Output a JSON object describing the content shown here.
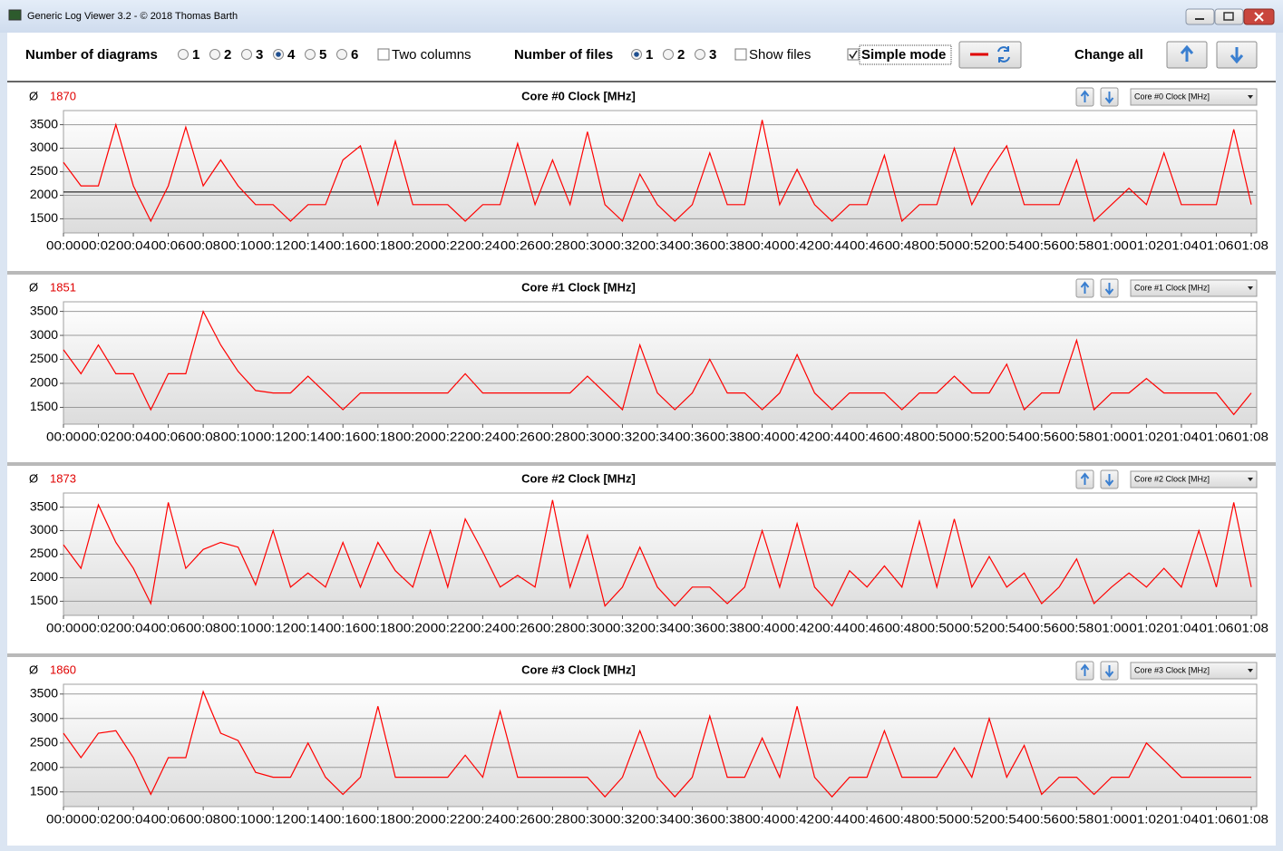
{
  "window": {
    "title": "Generic Log Viewer 3.2 - © 2018 Thomas Barth"
  },
  "toolbar": {
    "diagrams_label": "Number of diagrams",
    "diagram_options": [
      "1",
      "2",
      "3",
      "4",
      "5",
      "6"
    ],
    "diagram_selected": 3,
    "two_columns": "Two columns",
    "files_label": "Number of files",
    "file_options": [
      "1",
      "2",
      "3"
    ],
    "file_selected": 0,
    "show_files": "Show files",
    "simple_mode": "Simple mode",
    "change_all": "Change all"
  },
  "chart_data": [
    {
      "type": "line",
      "avg_symbol": "Ø",
      "average": 1870,
      "title": "Core #0 Clock [MHz]",
      "color": "#ff0000",
      "reference_line": 2070,
      "reference_color": "#000000",
      "xlim": [
        0,
        68
      ],
      "ylim": [
        1200,
        3800
      ],
      "yticks": [
        1500,
        2000,
        2500,
        3000,
        3500
      ],
      "xticks": [
        {
          "value": 0,
          "label": "00:00"
        },
        {
          "value": 2,
          "label": "00:02"
        },
        {
          "value": 4,
          "label": "00:04"
        },
        {
          "value": 6,
          "label": "00:06"
        },
        {
          "value": 8,
          "label": "00:08"
        },
        {
          "value": 10,
          "label": "00:10"
        },
        {
          "value": 12,
          "label": "00:12"
        },
        {
          "value": 14,
          "label": "00:14"
        },
        {
          "value": 16,
          "label": "00:16"
        },
        {
          "value": 18,
          "label": "00:18"
        },
        {
          "value": 20,
          "label": "00:20"
        },
        {
          "value": 22,
          "label": "00:22"
        },
        {
          "value": 24,
          "label": "00:24"
        },
        {
          "value": 26,
          "label": "00:26"
        },
        {
          "value": 28,
          "label": "00:28"
        },
        {
          "value": 30,
          "label": "00:30"
        },
        {
          "value": 32,
          "label": "00:32"
        },
        {
          "value": 34,
          "label": "00:34"
        },
        {
          "value": 36,
          "label": "00:36"
        },
        {
          "value": 38,
          "label": "00:38"
        },
        {
          "value": 40,
          "label": "00:40"
        },
        {
          "value": 42,
          "label": "00:42"
        },
        {
          "value": 44,
          "label": "00:44"
        },
        {
          "value": 46,
          "label": "00:46"
        },
        {
          "value": 48,
          "label": "00:48"
        },
        {
          "value": 50,
          "label": "00:50"
        },
        {
          "value": 52,
          "label": "00:52"
        },
        {
          "value": 54,
          "label": "00:54"
        },
        {
          "value": 56,
          "label": "00:56"
        },
        {
          "value": 58,
          "label": "00:58"
        },
        {
          "value": 60,
          "label": "01:00"
        },
        {
          "value": 62,
          "label": "01:02"
        },
        {
          "value": 64,
          "label": "01:04"
        },
        {
          "value": 66,
          "label": "01:06"
        },
        {
          "value": 68,
          "label": "01:08"
        }
      ],
      "x": [
        0,
        1,
        2,
        3,
        4,
        5,
        6,
        7,
        8,
        9,
        10,
        11,
        12,
        13,
        14,
        15,
        16,
        17,
        18,
        19,
        20,
        21,
        22,
        23,
        24,
        25,
        26,
        27,
        28,
        29,
        30,
        31,
        32,
        33,
        34,
        35,
        36,
        37,
        38,
        39,
        40,
        41,
        42,
        43,
        44,
        45,
        46,
        47,
        48,
        49,
        50,
        51,
        52,
        53,
        54,
        55,
        56,
        57,
        58,
        59,
        60,
        61,
        62,
        63,
        64,
        65,
        66,
        67,
        68
      ],
      "values": [
        2700,
        2200,
        2200,
        3500,
        2200,
        1450,
        2200,
        3450,
        2200,
        2750,
        2200,
        1800,
        1800,
        1450,
        1800,
        1800,
        2750,
        3050,
        1800,
        3150,
        1800,
        1800,
        1800,
        1450,
        1800,
        1800,
        3100,
        1800,
        2750,
        1800,
        3350,
        1800,
        1450,
        2450,
        1800,
        1450,
        1800,
        2900,
        1800,
        1800,
        3600,
        1800,
        2550,
        1800,
        1450,
        1800,
        1800,
        2850,
        1450,
        1800,
        1800,
        3000,
        1800,
        2500,
        3050,
        1800,
        1800,
        1800,
        2750,
        1450,
        1800,
        2150,
        1800,
        2900,
        1800,
        1800,
        1800,
        3400,
        1800
      ]
    },
    {
      "type": "line",
      "avg_symbol": "Ø",
      "average": 1851,
      "title": "Core #1 Clock [MHz]",
      "color": "#ff0000",
      "xlim": [
        0,
        68
      ],
      "ylim": [
        1150,
        3700
      ],
      "yticks": [
        1500,
        2000,
        2500,
        3000,
        3500
      ],
      "xticks": [
        {
          "value": 0,
          "label": "00:00"
        },
        {
          "value": 2,
          "label": "00:02"
        },
        {
          "value": 4,
          "label": "00:04"
        },
        {
          "value": 6,
          "label": "00:06"
        },
        {
          "value": 8,
          "label": "00:08"
        },
        {
          "value": 10,
          "label": "00:10"
        },
        {
          "value": 12,
          "label": "00:12"
        },
        {
          "value": 14,
          "label": "00:14"
        },
        {
          "value": 16,
          "label": "00:16"
        },
        {
          "value": 18,
          "label": "00:18"
        },
        {
          "value": 20,
          "label": "00:20"
        },
        {
          "value": 22,
          "label": "00:22"
        },
        {
          "value": 24,
          "label": "00:24"
        },
        {
          "value": 26,
          "label": "00:26"
        },
        {
          "value": 28,
          "label": "00:28"
        },
        {
          "value": 30,
          "label": "00:30"
        },
        {
          "value": 32,
          "label": "00:32"
        },
        {
          "value": 34,
          "label": "00:34"
        },
        {
          "value": 36,
          "label": "00:36"
        },
        {
          "value": 38,
          "label": "00:38"
        },
        {
          "value": 40,
          "label": "00:40"
        },
        {
          "value": 42,
          "label": "00:42"
        },
        {
          "value": 44,
          "label": "00:44"
        },
        {
          "value": 46,
          "label": "00:46"
        },
        {
          "value": 48,
          "label": "00:48"
        },
        {
          "value": 50,
          "label": "00:50"
        },
        {
          "value": 52,
          "label": "00:52"
        },
        {
          "value": 54,
          "label": "00:54"
        },
        {
          "value": 56,
          "label": "00:56"
        },
        {
          "value": 58,
          "label": "00:58"
        },
        {
          "value": 60,
          "label": "01:00"
        },
        {
          "value": 62,
          "label": "01:02"
        },
        {
          "value": 64,
          "label": "01:04"
        },
        {
          "value": 66,
          "label": "01:06"
        },
        {
          "value": 68,
          "label": "01:08"
        }
      ],
      "x": [
        0,
        1,
        2,
        3,
        4,
        5,
        6,
        7,
        8,
        9,
        10,
        11,
        12,
        13,
        14,
        15,
        16,
        17,
        18,
        19,
        20,
        21,
        22,
        23,
        24,
        25,
        26,
        27,
        28,
        29,
        30,
        31,
        32,
        33,
        34,
        35,
        36,
        37,
        38,
        39,
        40,
        41,
        42,
        43,
        44,
        45,
        46,
        47,
        48,
        49,
        50,
        51,
        52,
        53,
        54,
        55,
        56,
        57,
        58,
        59,
        60,
        61,
        62,
        63,
        64,
        65,
        66,
        67,
        68
      ],
      "values": [
        2700,
        2200,
        2800,
        2200,
        2200,
        1450,
        2200,
        2200,
        3500,
        2800,
        2250,
        1850,
        1800,
        1800,
        2150,
        1800,
        1450,
        1800,
        1800,
        1800,
        1800,
        1800,
        1800,
        2200,
        1800,
        1800,
        1800,
        1800,
        1800,
        1800,
        2150,
        1800,
        1450,
        2800,
        1800,
        1450,
        1800,
        2500,
        1800,
        1800,
        1450,
        1800,
        2600,
        1800,
        1450,
        1800,
        1800,
        1800,
        1450,
        1800,
        1800,
        2150,
        1800,
        1800,
        2400,
        1450,
        1800,
        1800,
        2900,
        1450,
        1800,
        1800,
        2100,
        1800,
        1800,
        1800,
        1800,
        1350,
        1800
      ]
    },
    {
      "type": "line",
      "avg_symbol": "Ø",
      "average": 1873,
      "title": "Core #2 Clock [MHz]",
      "color": "#ff0000",
      "xlim": [
        0,
        68
      ],
      "ylim": [
        1200,
        3800
      ],
      "yticks": [
        1500,
        2000,
        2500,
        3000,
        3500
      ],
      "xticks": [
        {
          "value": 0,
          "label": "00:00"
        },
        {
          "value": 2,
          "label": "00:02"
        },
        {
          "value": 4,
          "label": "00:04"
        },
        {
          "value": 6,
          "label": "00:06"
        },
        {
          "value": 8,
          "label": "00:08"
        },
        {
          "value": 10,
          "label": "00:10"
        },
        {
          "value": 12,
          "label": "00:12"
        },
        {
          "value": 14,
          "label": "00:14"
        },
        {
          "value": 16,
          "label": "00:16"
        },
        {
          "value": 18,
          "label": "00:18"
        },
        {
          "value": 20,
          "label": "00:20"
        },
        {
          "value": 22,
          "label": "00:22"
        },
        {
          "value": 24,
          "label": "00:24"
        },
        {
          "value": 26,
          "label": "00:26"
        },
        {
          "value": 28,
          "label": "00:28"
        },
        {
          "value": 30,
          "label": "00:30"
        },
        {
          "value": 32,
          "label": "00:32"
        },
        {
          "value": 34,
          "label": "00:34"
        },
        {
          "value": 36,
          "label": "00:36"
        },
        {
          "value": 38,
          "label": "00:38"
        },
        {
          "value": 40,
          "label": "00:40"
        },
        {
          "value": 42,
          "label": "00:42"
        },
        {
          "value": 44,
          "label": "00:44"
        },
        {
          "value": 46,
          "label": "00:46"
        },
        {
          "value": 48,
          "label": "00:48"
        },
        {
          "value": 50,
          "label": "00:50"
        },
        {
          "value": 52,
          "label": "00:52"
        },
        {
          "value": 54,
          "label": "00:54"
        },
        {
          "value": 56,
          "label": "00:56"
        },
        {
          "value": 58,
          "label": "00:58"
        },
        {
          "value": 60,
          "label": "01:00"
        },
        {
          "value": 62,
          "label": "01:02"
        },
        {
          "value": 64,
          "label": "01:04"
        },
        {
          "value": 66,
          "label": "01:06"
        },
        {
          "value": 68,
          "label": "01:08"
        }
      ],
      "x": [
        0,
        1,
        2,
        3,
        4,
        5,
        6,
        7,
        8,
        9,
        10,
        11,
        12,
        13,
        14,
        15,
        16,
        17,
        18,
        19,
        20,
        21,
        22,
        23,
        24,
        25,
        26,
        27,
        28,
        29,
        30,
        31,
        32,
        33,
        34,
        35,
        36,
        37,
        38,
        39,
        40,
        41,
        42,
        43,
        44,
        45,
        46,
        47,
        48,
        49,
        50,
        51,
        52,
        53,
        54,
        55,
        56,
        57,
        58,
        59,
        60,
        61,
        62,
        63,
        64,
        65,
        66,
        67,
        68
      ],
      "values": [
        2700,
        2200,
        3550,
        2750,
        2200,
        1450,
        3600,
        2200,
        2600,
        2750,
        2650,
        1850,
        3000,
        1800,
        2100,
        1800,
        2750,
        1800,
        2750,
        2150,
        1800,
        3000,
        1800,
        3250,
        2550,
        1800,
        2050,
        1800,
        3650,
        1800,
        2900,
        1400,
        1800,
        2650,
        1800,
        1400,
        1800,
        1800,
        1450,
        1800,
        3000,
        1800,
        3150,
        1800,
        1400,
        2150,
        1800,
        2250,
        1800,
        3200,
        1800,
        3250,
        1800,
        2450,
        1800,
        2100,
        1450,
        1800,
        2400,
        1450,
        1800,
        2100,
        1800,
        2200,
        1800,
        3000,
        1800,
        3600,
        1800
      ]
    },
    {
      "type": "line",
      "avg_symbol": "Ø",
      "average": 1860,
      "title": "Core #3 Clock [MHz]",
      "color": "#ff0000",
      "xlim": [
        0,
        68
      ],
      "ylim": [
        1200,
        3700
      ],
      "yticks": [
        1500,
        2000,
        2500,
        3000,
        3500
      ],
      "xticks": [
        {
          "value": 0,
          "label": "00:00"
        },
        {
          "value": 2,
          "label": "00:02"
        },
        {
          "value": 4,
          "label": "00:04"
        },
        {
          "value": 6,
          "label": "00:06"
        },
        {
          "value": 8,
          "label": "00:08"
        },
        {
          "value": 10,
          "label": "00:10"
        },
        {
          "value": 12,
          "label": "00:12"
        },
        {
          "value": 14,
          "label": "00:14"
        },
        {
          "value": 16,
          "label": "00:16"
        },
        {
          "value": 18,
          "label": "00:18"
        },
        {
          "value": 20,
          "label": "00:20"
        },
        {
          "value": 22,
          "label": "00:22"
        },
        {
          "value": 24,
          "label": "00:24"
        },
        {
          "value": 26,
          "label": "00:26"
        },
        {
          "value": 28,
          "label": "00:28"
        },
        {
          "value": 30,
          "label": "00:30"
        },
        {
          "value": 32,
          "label": "00:32"
        },
        {
          "value": 34,
          "label": "00:34"
        },
        {
          "value": 36,
          "label": "00:36"
        },
        {
          "value": 38,
          "label": "00:38"
        },
        {
          "value": 40,
          "label": "00:40"
        },
        {
          "value": 42,
          "label": "00:42"
        },
        {
          "value": 44,
          "label": "00:44"
        },
        {
          "value": 46,
          "label": "00:46"
        },
        {
          "value": 48,
          "label": "00:48"
        },
        {
          "value": 50,
          "label": "00:50"
        },
        {
          "value": 52,
          "label": "00:52"
        },
        {
          "value": 54,
          "label": "00:54"
        },
        {
          "value": 56,
          "label": "00:56"
        },
        {
          "value": 58,
          "label": "00:58"
        },
        {
          "value": 60,
          "label": "01:00"
        },
        {
          "value": 62,
          "label": "01:02"
        },
        {
          "value": 64,
          "label": "01:04"
        },
        {
          "value": 66,
          "label": "01:06"
        },
        {
          "value": 68,
          "label": "01:08"
        }
      ],
      "x": [
        0,
        1,
        2,
        3,
        4,
        5,
        6,
        7,
        8,
        9,
        10,
        11,
        12,
        13,
        14,
        15,
        16,
        17,
        18,
        19,
        20,
        21,
        22,
        23,
        24,
        25,
        26,
        27,
        28,
        29,
        30,
        31,
        32,
        33,
        34,
        35,
        36,
        37,
        38,
        39,
        40,
        41,
        42,
        43,
        44,
        45,
        46,
        47,
        48,
        49,
        50,
        51,
        52,
        53,
        54,
        55,
        56,
        57,
        58,
        59,
        60,
        61,
        62,
        63,
        64,
        65,
        66,
        67,
        68
      ],
      "values": [
        2700,
        2200,
        2700,
        2750,
        2200,
        1450,
        2200,
        2200,
        3550,
        2700,
        2550,
        1900,
        1800,
        1800,
        2500,
        1800,
        1450,
        1800,
        3250,
        1800,
        1800,
        1800,
        1800,
        2250,
        1800,
        3150,
        1800,
        1800,
        1800,
        1800,
        1800,
        1400,
        1800,
        2750,
        1800,
        1400,
        1800,
        3050,
        1800,
        1800,
        2600,
        1800,
        3250,
        1800,
        1400,
        1800,
        1800,
        2750,
        1800,
        1800,
        1800,
        2400,
        1800,
        3000,
        1800,
        2450,
        1450,
        1800,
        1800,
        1450,
        1800,
        1800,
        2500,
        2150,
        1800,
        1800,
        1800,
        1800,
        1800
      ]
    }
  ]
}
